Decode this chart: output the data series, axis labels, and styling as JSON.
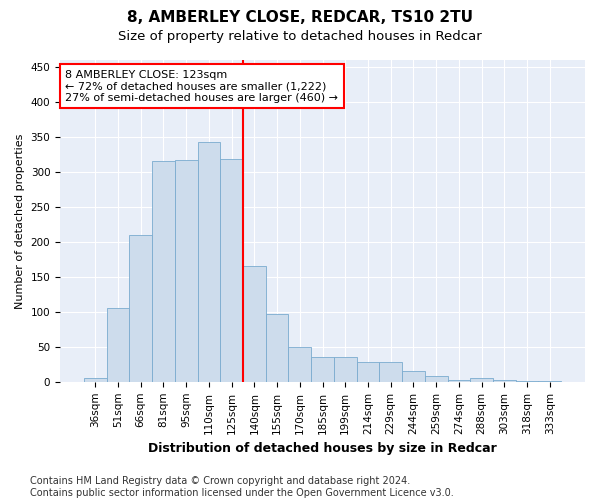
{
  "title": "8, AMBERLEY CLOSE, REDCAR, TS10 2TU",
  "subtitle": "Size of property relative to detached houses in Redcar",
  "xlabel": "Distribution of detached houses by size in Redcar",
  "ylabel": "Number of detached properties",
  "categories": [
    "36sqm",
    "51sqm",
    "66sqm",
    "81sqm",
    "95sqm",
    "110sqm",
    "125sqm",
    "140sqm",
    "155sqm",
    "170sqm",
    "185sqm",
    "199sqm",
    "214sqm",
    "229sqm",
    "244sqm",
    "259sqm",
    "274sqm",
    "288sqm",
    "303sqm",
    "318sqm",
    "333sqm"
  ],
  "values": [
    6,
    105,
    210,
    315,
    317,
    343,
    318,
    165,
    97,
    50,
    35,
    35,
    29,
    29,
    15,
    8,
    3,
    5,
    2,
    1,
    1
  ],
  "bar_color": "#cddcec",
  "bar_edge_color": "#7aabcf",
  "vline_index": 6,
  "vline_color": "red",
  "annotation_line1": "8 AMBERLEY CLOSE: 123sqm",
  "annotation_line2": "← 72% of detached houses are smaller (1,222)",
  "annotation_line3": "27% of semi-detached houses are larger (460) →",
  "ylim": [
    0,
    460
  ],
  "yticks": [
    0,
    50,
    100,
    150,
    200,
    250,
    300,
    350,
    400,
    450
  ],
  "footnote": "Contains HM Land Registry data © Crown copyright and database right 2024.\nContains public sector information licensed under the Open Government Licence v3.0.",
  "bg_color": "#ffffff",
  "plot_bg_color": "#e8eef8",
  "title_fontsize": 11,
  "subtitle_fontsize": 9.5,
  "xlabel_fontsize": 9,
  "ylabel_fontsize": 8,
  "tick_fontsize": 7.5,
  "annotation_fontsize": 8,
  "footnote_fontsize": 7
}
